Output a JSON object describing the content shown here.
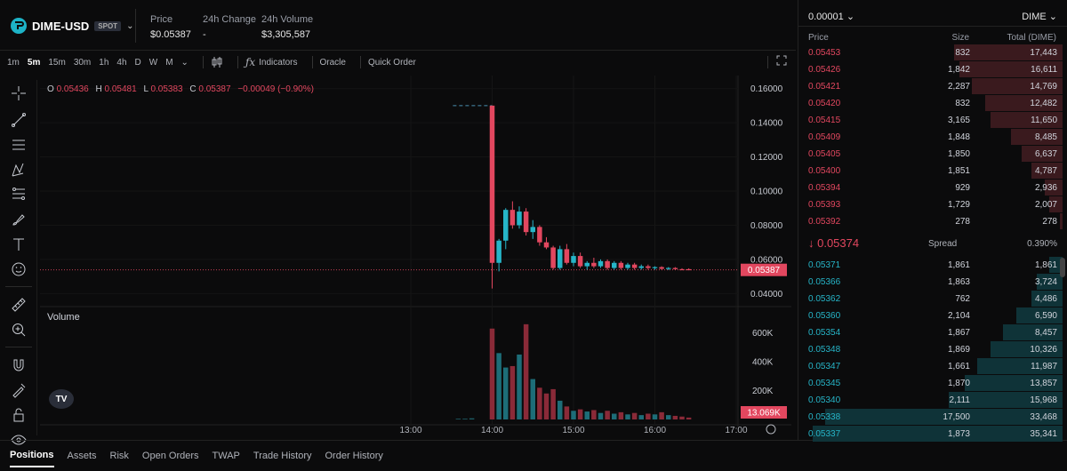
{
  "header": {
    "symbol": "DIME-USD",
    "badge": "SPOT",
    "stats": [
      {
        "label": "Price",
        "value": "$0.05387"
      },
      {
        "label": "24h Change",
        "value": "-"
      },
      {
        "label": "24h Volume",
        "value": "$3,305,587"
      }
    ]
  },
  "toolbar": {
    "timeframes": [
      "1m",
      "5m",
      "15m",
      "30m",
      "1h",
      "4h",
      "D",
      "W",
      "M"
    ],
    "active_timeframe": "5m",
    "indicators": "Indicators",
    "oracle": "Oracle",
    "quick_order": "Quick Order"
  },
  "ohlc": {
    "o_label": "O",
    "o": "0.05436",
    "h_label": "H",
    "h": "0.05481",
    "l_label": "L",
    "l": "0.05383",
    "c_label": "C",
    "c": "0.05387",
    "change": "−0.00049 (−0.90%)"
  },
  "volume_label": "Volume",
  "chart_data": {
    "type": "candlestick",
    "price_axis": [
      "0.16000",
      "0.14000",
      "0.12000",
      "0.10000",
      "0.08000",
      "0.06000",
      "0.04000"
    ],
    "price_ylim": [
      0.035,
      0.165
    ],
    "volume_axis": [
      "600K",
      "400K",
      "200K"
    ],
    "volume_ylim": [
      0,
      690000
    ],
    "time_axis": [
      "13:00",
      "14:00",
      "15:00",
      "16:00",
      "17:00"
    ],
    "current_price_label": "0.05387",
    "current_price": 0.05387,
    "current_volume_label": "13.069K",
    "preopen_line_price": 0.15,
    "up_color": "#26b5c8",
    "down_color": "#e2475f",
    "candles": [
      {
        "t": "14:00",
        "o": 0.15,
        "h": 0.15,
        "l": 0.043,
        "c": 0.058,
        "v": 630000
      },
      {
        "t": "14:05",
        "o": 0.058,
        "h": 0.072,
        "l": 0.053,
        "c": 0.071,
        "v": 460000
      },
      {
        "t": "14:10",
        "o": 0.071,
        "h": 0.09,
        "l": 0.066,
        "c": 0.089,
        "v": 360000
      },
      {
        "t": "14:15",
        "o": 0.089,
        "h": 0.094,
        "l": 0.078,
        "c": 0.08,
        "v": 370000
      },
      {
        "t": "14:20",
        "o": 0.08,
        "h": 0.091,
        "l": 0.078,
        "c": 0.088,
        "v": 450000
      },
      {
        "t": "14:25",
        "o": 0.088,
        "h": 0.09,
        "l": 0.074,
        "c": 0.076,
        "v": 660000
      },
      {
        "t": "14:30",
        "o": 0.076,
        "h": 0.083,
        "l": 0.072,
        "c": 0.079,
        "v": 280000
      },
      {
        "t": "14:35",
        "o": 0.079,
        "h": 0.08,
        "l": 0.068,
        "c": 0.07,
        "v": 220000
      },
      {
        "t": "14:40",
        "o": 0.07,
        "h": 0.073,
        "l": 0.066,
        "c": 0.067,
        "v": 180000
      },
      {
        "t": "14:45",
        "o": 0.067,
        "h": 0.068,
        "l": 0.054,
        "c": 0.055,
        "v": 210000
      },
      {
        "t": "14:50",
        "o": 0.055,
        "h": 0.068,
        "l": 0.054,
        "c": 0.066,
        "v": 130000
      },
      {
        "t": "14:55",
        "o": 0.066,
        "h": 0.069,
        "l": 0.057,
        "c": 0.058,
        "v": 90000
      },
      {
        "t": "15:00",
        "o": 0.058,
        "h": 0.064,
        "l": 0.056,
        "c": 0.062,
        "v": 60000
      },
      {
        "t": "15:05",
        "o": 0.062,
        "h": 0.064,
        "l": 0.055,
        "c": 0.056,
        "v": 70000
      },
      {
        "t": "15:10",
        "o": 0.056,
        "h": 0.059,
        "l": 0.054,
        "c": 0.058,
        "v": 55000
      },
      {
        "t": "15:15",
        "o": 0.058,
        "h": 0.061,
        "l": 0.055,
        "c": 0.056,
        "v": 65000
      },
      {
        "t": "15:20",
        "o": 0.056,
        "h": 0.06,
        "l": 0.055,
        "c": 0.059,
        "v": 45000
      },
      {
        "t": "15:25",
        "o": 0.059,
        "h": 0.06,
        "l": 0.054,
        "c": 0.055,
        "v": 60000
      },
      {
        "t": "15:30",
        "o": 0.055,
        "h": 0.059,
        "l": 0.054,
        "c": 0.058,
        "v": 40000
      },
      {
        "t": "15:35",
        "o": 0.058,
        "h": 0.059,
        "l": 0.054,
        "c": 0.055,
        "v": 50000
      },
      {
        "t": "15:40",
        "o": 0.055,
        "h": 0.058,
        "l": 0.054,
        "c": 0.057,
        "v": 35000
      },
      {
        "t": "15:45",
        "o": 0.057,
        "h": 0.058,
        "l": 0.054,
        "c": 0.055,
        "v": 45000
      },
      {
        "t": "15:50",
        "o": 0.055,
        "h": 0.057,
        "l": 0.054,
        "c": 0.056,
        "v": 30000
      },
      {
        "t": "15:55",
        "o": 0.056,
        "h": 0.057,
        "l": 0.054,
        "c": 0.055,
        "v": 40000
      },
      {
        "t": "16:00",
        "o": 0.055,
        "h": 0.056,
        "l": 0.054,
        "c": 0.0555,
        "v": 35000
      },
      {
        "t": "16:05",
        "o": 0.0555,
        "h": 0.056,
        "l": 0.054,
        "c": 0.0545,
        "v": 50000
      },
      {
        "t": "16:10",
        "o": 0.0545,
        "h": 0.0555,
        "l": 0.0538,
        "c": 0.055,
        "v": 30000
      },
      {
        "t": "16:15",
        "o": 0.055,
        "h": 0.0555,
        "l": 0.0538,
        "c": 0.0543,
        "v": 25000
      },
      {
        "t": "16:20",
        "o": 0.0543,
        "h": 0.0548,
        "l": 0.0538,
        "c": 0.054,
        "v": 20000
      },
      {
        "t": "16:25",
        "o": 0.0543,
        "h": 0.0548,
        "l": 0.0538,
        "c": 0.0539,
        "v": 13069
      }
    ],
    "pre_candles": [
      {
        "t": "13:35",
        "o": 0.15,
        "h": 0.15,
        "l": 0.15,
        "c": 0.15,
        "v": 5000
      },
      {
        "t": "13:40",
        "o": 0.15,
        "h": 0.15,
        "l": 0.15,
        "c": 0.15,
        "v": 5000
      },
      {
        "t": "13:45",
        "o": 0.15,
        "h": 0.15,
        "l": 0.15,
        "c": 0.15,
        "v": 8000
      }
    ]
  },
  "orderbook": {
    "tick": "0.00001",
    "unit": "DIME",
    "headers": {
      "price": "Price",
      "size": "Size",
      "total": "Total (DIME)"
    },
    "asks": [
      {
        "price": "0.05453",
        "size": "832",
        "total": "17,443",
        "depth": 0.42
      },
      {
        "price": "0.05426",
        "size": "1,842",
        "total": "16,611",
        "depth": 0.4
      },
      {
        "price": "0.05421",
        "size": "2,287",
        "total": "14,769",
        "depth": 0.35
      },
      {
        "price": "0.05420",
        "size": "832",
        "total": "12,482",
        "depth": 0.3
      },
      {
        "price": "0.05415",
        "size": "3,165",
        "total": "11,650",
        "depth": 0.28
      },
      {
        "price": "0.05409",
        "size": "1,848",
        "total": "8,485",
        "depth": 0.2
      },
      {
        "price": "0.05405",
        "size": "1,850",
        "total": "6,637",
        "depth": 0.16
      },
      {
        "price": "0.05400",
        "size": "1,851",
        "total": "4,787",
        "depth": 0.12
      },
      {
        "price": "0.05394",
        "size": "929",
        "total": "2,936",
        "depth": 0.07
      },
      {
        "price": "0.05393",
        "size": "1,729",
        "total": "2,007",
        "depth": 0.05
      },
      {
        "price": "0.05392",
        "size": "278",
        "total": "278",
        "depth": 0.01
      }
    ],
    "spread": {
      "last_price": "↓ 0.05374",
      "label": "Spread",
      "pct": "0.390%"
    },
    "bids": [
      {
        "price": "0.05371",
        "size": "1,861",
        "total": "1,861",
        "depth": 0.05
      },
      {
        "price": "0.05366",
        "size": "1,863",
        "total": "3,724",
        "depth": 0.1
      },
      {
        "price": "0.05362",
        "size": "762",
        "total": "4,486",
        "depth": 0.12
      },
      {
        "price": "0.05360",
        "size": "2,104",
        "total": "6,590",
        "depth": 0.18
      },
      {
        "price": "0.05354",
        "size": "1,867",
        "total": "8,457",
        "depth": 0.23
      },
      {
        "price": "0.05348",
        "size": "1,869",
        "total": "10,326",
        "depth": 0.28
      },
      {
        "price": "0.05347",
        "size": "1,661",
        "total": "11,987",
        "depth": 0.33
      },
      {
        "price": "0.05345",
        "size": "1,870",
        "total": "13,857",
        "depth": 0.38
      },
      {
        "price": "0.05340",
        "size": "2,111",
        "total": "15,968",
        "depth": 0.44
      },
      {
        "price": "0.05338",
        "size": "17,500",
        "total": "33,468",
        "depth": 0.92
      },
      {
        "price": "0.05337",
        "size": "1,873",
        "total": "35,341",
        "depth": 0.97
      }
    ]
  },
  "bottom_tabs": [
    "Positions",
    "Assets",
    "Risk",
    "Open Orders",
    "TWAP",
    "Trade History",
    "Order History"
  ],
  "active_bottom_tab": "Positions"
}
